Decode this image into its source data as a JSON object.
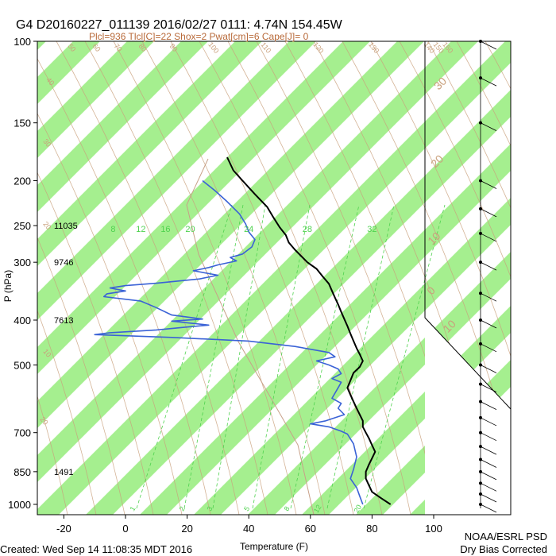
{
  "header": {
    "title": "G4 D20160227_011139 2016/02/27 0111:  4.74N 154.45W",
    "subtitle": "Plcl=936 Tlcl[C]=22 Shox=2 Pwat[cm]=6 Cape[J]= 0"
  },
  "footer": {
    "created": "Created: Wed Sep 14 11:08:35 MDT 2016",
    "org": "NOAA/ESRL PSD",
    "note": "Dry Bias Corrected"
  },
  "colors": {
    "band": "#a5ef8f",
    "temperature": "#000000",
    "dewpoint": "#3a62d6",
    "dry_adiabat": "#c9a07c",
    "mixing_ratio": "#4fd24f",
    "isotherm_label": "#c9a07c",
    "axis": "#000000"
  },
  "chart_data": {
    "type": "line",
    "xlabel": "Temperature (F)",
    "ylabel": "P (hPa)",
    "x_ticks": [
      -20,
      0,
      20,
      40,
      60,
      80,
      100
    ],
    "y_ticks": [
      100,
      150,
      200,
      250,
      300,
      400,
      500,
      700,
      850,
      1000
    ],
    "xlim": [
      -30,
      110
    ],
    "ylim": [
      1050,
      100
    ],
    "y_scale": "log",
    "height_labels": [
      {
        "p": 250,
        "text": "11035"
      },
      {
        "p": 300,
        "text": "9746"
      },
      {
        "p": 400,
        "text": "7613"
      },
      {
        "p": 850,
        "text": "1491"
      }
    ],
    "mixing_ratio_top_labels": [
      {
        "label": "8",
        "x": -4
      },
      {
        "label": "12",
        "x": 5
      },
      {
        "label": "16",
        "x": 13
      },
      {
        "label": "20",
        "x": 21
      },
      {
        "label": "24",
        "x": 40
      },
      {
        "label": "28",
        "x": 59
      },
      {
        "label": "32",
        "x": 80
      }
    ],
    "mixing_ratio_bottom_labels": [
      {
        "label": "1",
        "x": 3
      },
      {
        "label": "2",
        "x": 19
      },
      {
        "label": "3",
        "x": 28
      },
      {
        "label": "5",
        "x": 40
      },
      {
        "label": "8",
        "x": 53
      },
      {
        "label": "12",
        "x": 63
      },
      {
        "label": "20",
        "x": 76
      }
    ],
    "dry_adiabat_labels": [
      {
        "label": "50",
        "x": -18,
        "p": 104
      },
      {
        "label": "60",
        "x": -10,
        "p": 104
      },
      {
        "label": "70",
        "x": -3,
        "p": 104
      },
      {
        "label": "80",
        "x": 5,
        "p": 104
      },
      {
        "label": "90",
        "x": 15,
        "p": 104
      },
      {
        "label": "100",
        "x": 28,
        "p": 104
      },
      {
        "label": "110",
        "x": 45,
        "p": 104
      },
      {
        "label": "120",
        "x": 62,
        "p": 104
      },
      {
        "label": "130",
        "x": 80,
        "p": 104
      },
      {
        "label": "140",
        "x": 98,
        "p": 104
      },
      {
        "label": "150",
        "x": 101,
        "p": 104
      },
      {
        "label": "160",
        "x": 104,
        "p": 104
      },
      {
        "label": "40",
        "x": -25,
        "p": 123
      },
      {
        "label": "30",
        "x": -26,
        "p": 167
      },
      {
        "label": "20",
        "x": -26,
        "p": 252
      },
      {
        "label": "10",
        "x": -26,
        "p": 475
      },
      {
        "label": "20",
        "x": -27,
        "p": 665
      }
    ],
    "isotherm_labels": [
      {
        "label": "30",
        "x": 103,
        "p": 125
      },
      {
        "label": "20",
        "x": 102,
        "p": 184
      },
      {
        "label": "10",
        "x": 101,
        "p": 270
      },
      {
        "label": "0",
        "x": 100,
        "p": 350
      },
      {
        "label": "10",
        "x": 106,
        "p": 418
      }
    ],
    "series": [
      {
        "name": "Temperature",
        "points": [
          [
            33,
            178
          ],
          [
            35,
            190
          ],
          [
            38,
            200
          ],
          [
            42,
            214
          ],
          [
            46,
            228
          ],
          [
            48,
            240
          ],
          [
            50,
            252
          ],
          [
            52,
            262
          ],
          [
            53,
            272
          ],
          [
            55,
            282
          ],
          [
            57,
            291
          ],
          [
            59,
            300
          ],
          [
            62,
            310
          ],
          [
            64,
            322
          ],
          [
            66,
            334
          ],
          [
            67,
            346
          ],
          [
            68,
            358
          ],
          [
            69,
            370
          ],
          [
            70,
            384
          ],
          [
            71,
            398
          ],
          [
            72,
            412
          ],
          [
            73,
            428
          ],
          [
            74,
            444
          ],
          [
            75,
            460
          ],
          [
            76,
            474
          ],
          [
            77,
            490
          ],
          [
            76,
            505
          ],
          [
            74,
            520
          ],
          [
            73,
            540
          ],
          [
            72,
            560
          ],
          [
            73,
            580
          ],
          [
            74,
            600
          ],
          [
            75,
            620
          ],
          [
            76,
            640
          ],
          [
            77,
            660
          ],
          [
            77,
            680
          ],
          [
            78,
            700
          ],
          [
            79,
            720
          ],
          [
            80,
            745
          ],
          [
            81,
            770
          ],
          [
            80,
            795
          ],
          [
            79,
            820
          ],
          [
            78,
            850
          ],
          [
            78,
            880
          ],
          [
            79,
            910
          ],
          [
            80,
            940
          ],
          [
            83,
            970
          ],
          [
            86,
            1000
          ]
        ]
      },
      {
        "name": "Dewpoint",
        "points": [
          [
            25,
            200
          ],
          [
            29,
            210
          ],
          [
            33,
            222
          ],
          [
            37,
            236
          ],
          [
            39,
            248
          ],
          [
            40,
            258
          ],
          [
            42,
            268
          ],
          [
            41,
            278
          ],
          [
            38,
            288
          ],
          [
            34,
            293
          ],
          [
            36,
            298
          ],
          [
            30,
            304
          ],
          [
            27,
            308
          ],
          [
            22,
            313
          ],
          [
            30,
            320
          ],
          [
            24,
            326
          ],
          [
            10,
            333
          ],
          [
            0,
            337
          ],
          [
            -5,
            341
          ],
          [
            0,
            346
          ],
          [
            -6,
            351
          ],
          [
            -7,
            356
          ],
          [
            5,
            364
          ],
          [
            10,
            376
          ],
          [
            15,
            390
          ],
          [
            25,
            398
          ],
          [
            15,
            402
          ],
          [
            27,
            410
          ],
          [
            20,
            414
          ],
          [
            10,
            420
          ],
          [
            -5,
            426
          ],
          [
            -10,
            430
          ],
          [
            15,
            436
          ],
          [
            40,
            444
          ],
          [
            55,
            456
          ],
          [
            66,
            470
          ],
          [
            68,
            480
          ],
          [
            62,
            490
          ],
          [
            66,
            500
          ],
          [
            69,
            510
          ],
          [
            70,
            522
          ],
          [
            67,
            535
          ],
          [
            70,
            545
          ],
          [
            69,
            560
          ],
          [
            68,
            575
          ],
          [
            67,
            590
          ],
          [
            70,
            605
          ],
          [
            69,
            620
          ],
          [
            71,
            640
          ],
          [
            65,
            660
          ],
          [
            60,
            670
          ],
          [
            66,
            680
          ],
          [
            70,
            695
          ],
          [
            72,
            705
          ],
          [
            74,
            740
          ],
          [
            75,
            790
          ],
          [
            74,
            840
          ],
          [
            73,
            880
          ],
          [
            75,
            920
          ],
          [
            76,
            960
          ],
          [
            77,
            1000
          ]
        ]
      }
    ],
    "wind_barbs_present": true,
    "grid": false
  }
}
